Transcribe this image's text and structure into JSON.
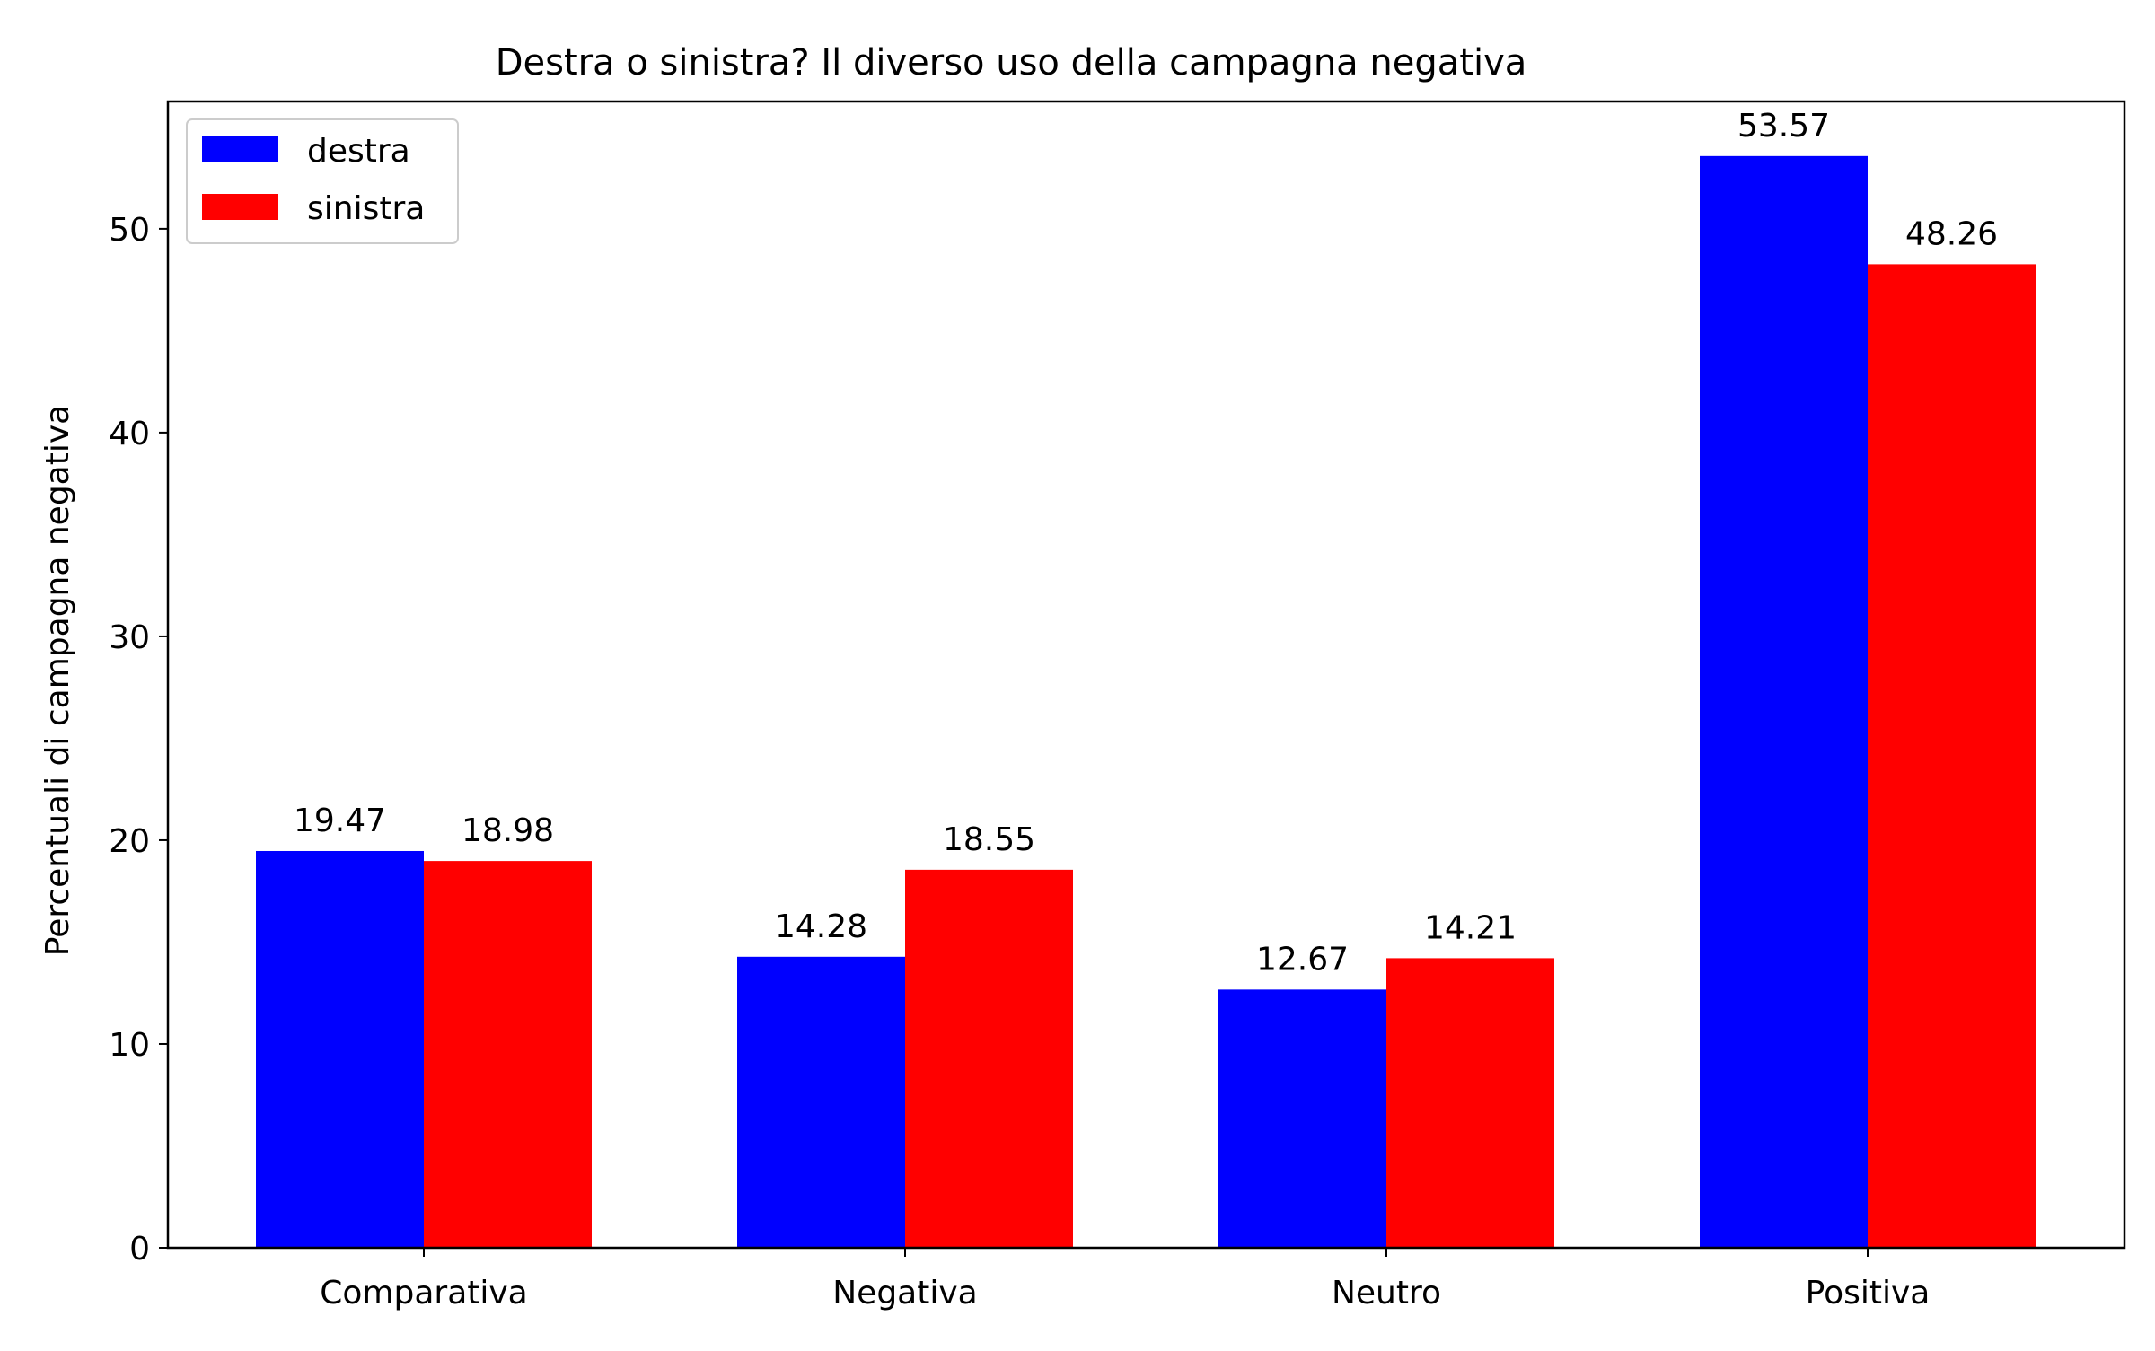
{
  "chart_data": {
    "type": "bar",
    "title": "Destra o sinistra? Il diverso uso della campagna negativa",
    "xlabel": "",
    "ylabel": "Percentuali di campagna negativa",
    "categories": [
      "Comparativa",
      "Negativa",
      "Neutro",
      "Positiva"
    ],
    "series": [
      {
        "name": "destra",
        "values": [
          19.47,
          14.28,
          12.67,
          53.57
        ],
        "color": "#0000ff"
      },
      {
        "name": "sinistra",
        "values": [
          18.98,
          18.55,
          14.21,
          48.26
        ],
        "color": "#ff0000"
      }
    ],
    "data_labels": [
      [
        "19.47",
        "14.28",
        "12.67",
        "53.57"
      ],
      [
        "18.98",
        "18.55",
        "14.21",
        "48.26"
      ]
    ],
    "yticks": [
      0,
      10,
      20,
      30,
      40,
      50
    ],
    "ylim": [
      0,
      56.25
    ],
    "grid": false,
    "legend_position": "top-left"
  }
}
